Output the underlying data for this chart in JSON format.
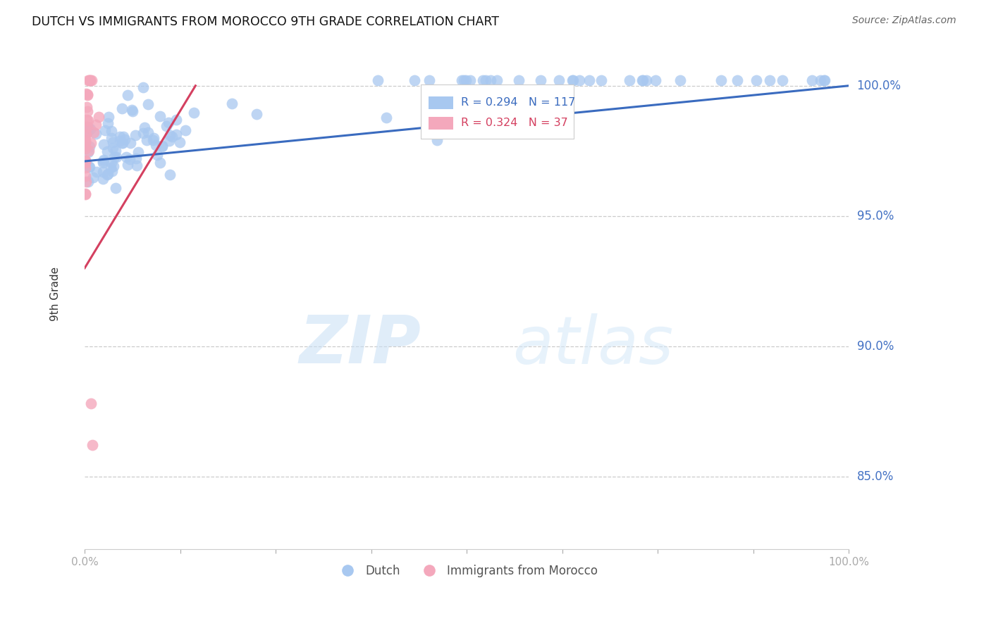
{
  "title": "DUTCH VS IMMIGRANTS FROM MOROCCO 9TH GRADE CORRELATION CHART",
  "source": "Source: ZipAtlas.com",
  "ylabel": "9th Grade",
  "r_dutch": 0.294,
  "n_dutch": 117,
  "r_morocco": 0.324,
  "n_morocco": 37,
  "dutch_color": "#a8c8f0",
  "morocco_color": "#f4a8bc",
  "trend_dutch_color": "#3a6bbf",
  "trend_morocco_color": "#d44060",
  "legend_dutch": "Dutch",
  "legend_morocco": "Immigrants from Morocco",
  "ytick_labels": [
    "85.0%",
    "90.0%",
    "95.0%",
    "100.0%"
  ],
  "ytick_values": [
    0.85,
    0.9,
    0.95,
    1.0
  ],
  "xlim": [
    0.0,
    1.0
  ],
  "ylim": [
    0.822,
    1.018
  ],
  "watermark_zip": "ZIP",
  "watermark_atlas": "atlas",
  "bg_color": "#ffffff"
}
